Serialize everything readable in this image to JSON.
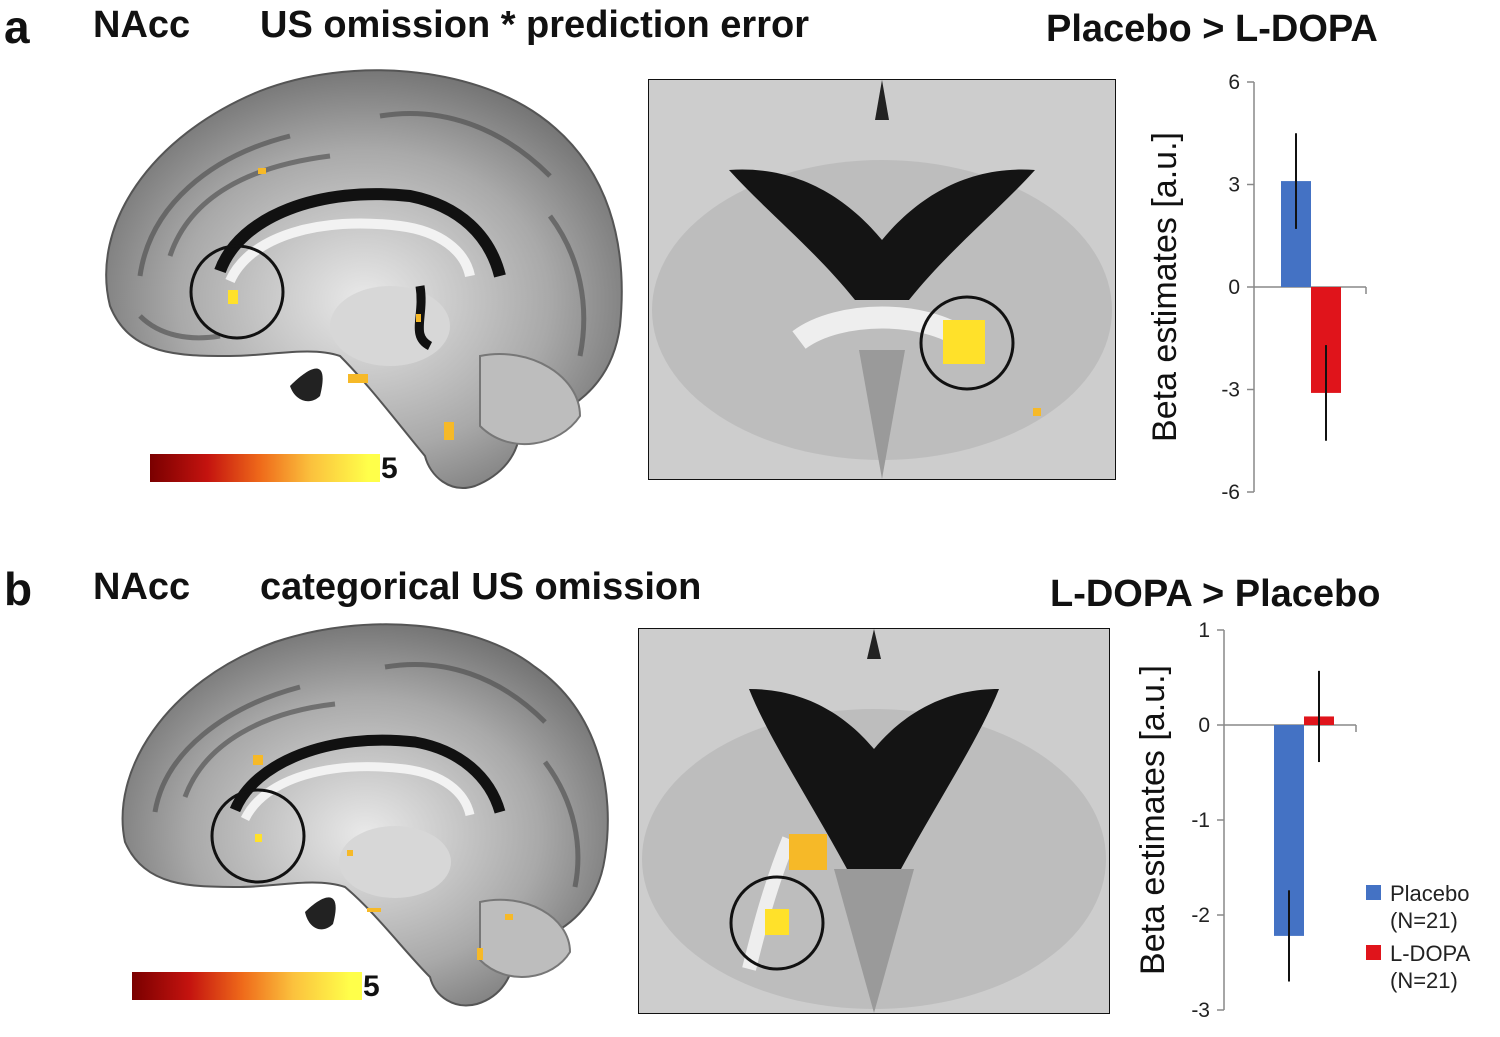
{
  "panels": [
    {
      "letter": "a",
      "region": "NAcc",
      "title": "US omission * prediction error",
      "contrast": "Placebo > L-DOPA",
      "colorbar_max": "5"
    },
    {
      "letter": "b",
      "region": "NAcc",
      "title": "categorical US omission",
      "contrast": "L-DOPA > Placebo",
      "colorbar_max": "5"
    }
  ],
  "colors": {
    "placebo": "#4472c4",
    "ldopa": "#e0141b",
    "activation": "#ffe12a"
  },
  "legend": [
    {
      "label": "Placebo",
      "n": "(N=21)"
    },
    {
      "label": "L-DOPA",
      "n": "(N=21)"
    }
  ],
  "chart_data": [
    {
      "type": "bar",
      "categories": [
        "Placebo",
        "L-DOPA"
      ],
      "values": [
        3.1,
        -3.1
      ],
      "errors": [
        1.4,
        1.4
      ],
      "ylabel": "Beta estimates [a.u.]",
      "ylim": [
        -6,
        6
      ],
      "yticks": [
        "6",
        "3",
        "0",
        "-3",
        "-6"
      ],
      "ytick_values": [
        6,
        3,
        0,
        -3,
        -6
      ]
    },
    {
      "type": "bar",
      "categories": [
        "Placebo",
        "L-DOPA"
      ],
      "values": [
        -2.22,
        0.09
      ],
      "errors": [
        0.48,
        0.48
      ],
      "ylabel": "Beta estimates [a.u.]",
      "ylim": [
        -3,
        1
      ],
      "yticks": [
        "1",
        "0",
        "-1",
        "-2",
        "-3"
      ],
      "ytick_values": [
        1,
        0,
        -1,
        -2,
        -3
      ]
    }
  ]
}
